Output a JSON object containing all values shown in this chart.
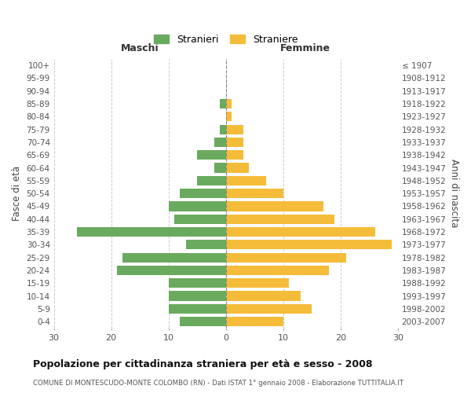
{
  "age_groups": [
    "100+",
    "95-99",
    "90-94",
    "85-89",
    "80-84",
    "75-79",
    "70-74",
    "65-69",
    "60-64",
    "55-59",
    "50-54",
    "45-49",
    "40-44",
    "35-39",
    "30-34",
    "25-29",
    "20-24",
    "15-19",
    "10-14",
    "5-9",
    "0-4"
  ],
  "birth_years": [
    "≤ 1907",
    "1908-1912",
    "1913-1917",
    "1918-1922",
    "1923-1927",
    "1928-1932",
    "1933-1937",
    "1938-1942",
    "1943-1947",
    "1948-1952",
    "1953-1957",
    "1958-1962",
    "1963-1967",
    "1968-1972",
    "1973-1977",
    "1978-1982",
    "1983-1987",
    "1988-1992",
    "1993-1997",
    "1998-2002",
    "2003-2007"
  ],
  "maschi": [
    0,
    0,
    0,
    1,
    0,
    1,
    2,
    5,
    2,
    5,
    8,
    10,
    9,
    26,
    7,
    18,
    19,
    10,
    10,
    10,
    8
  ],
  "femmine": [
    0,
    0,
    0,
    1,
    1,
    3,
    3,
    3,
    4,
    7,
    10,
    17,
    19,
    26,
    29,
    21,
    18,
    11,
    13,
    15,
    10
  ],
  "male_color": "#6aaa5e",
  "female_color": "#f5bc3a",
  "title": "Popolazione per cittadinanza straniera per età e sesso - 2008",
  "subtitle": "COMUNE DI MONTESCUDO-MONTE COLOMBO (RN) - Dati ISTAT 1° gennaio 2008 - Elaborazione TUTTITALIA.IT",
  "header_left": "Maschi",
  "header_right": "Femmine",
  "ylabel_left": "Fasce di età",
  "ylabel_right": "Anni di nascita",
  "legend_male": "Stranieri",
  "legend_female": "Straniere",
  "xlim": 30,
  "grid_color": "#cccccc",
  "bar_height": 0.75
}
